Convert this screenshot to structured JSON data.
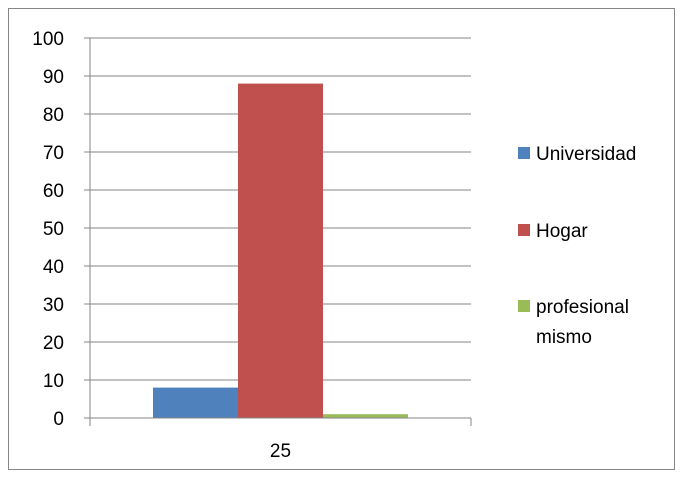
{
  "chart_data": {
    "type": "bar",
    "categories": [
      "25"
    ],
    "series": [
      {
        "name": "Universidad",
        "values": [
          8
        ],
        "color": "#4F81BD"
      },
      {
        "name": "Hogar",
        "values": [
          88
        ],
        "color": "#C0504D"
      },
      {
        "name": "profesional mismo",
        "values": [
          1
        ],
        "color": "#9BBB59"
      }
    ],
    "ylim": [
      0,
      100
    ],
    "yticks": [
      0,
      10,
      20,
      30,
      40,
      50,
      60,
      70,
      80,
      90,
      100
    ],
    "grid": true,
    "legend_position": "right",
    "title": "",
    "xlabel": "",
    "ylabel": ""
  },
  "legend": {
    "items": [
      {
        "label_lines": [
          "Universidad"
        ]
      },
      {
        "label_lines": [
          "Hogar"
        ]
      },
      {
        "label_lines": [
          "profesional",
          "mismo"
        ]
      }
    ]
  }
}
